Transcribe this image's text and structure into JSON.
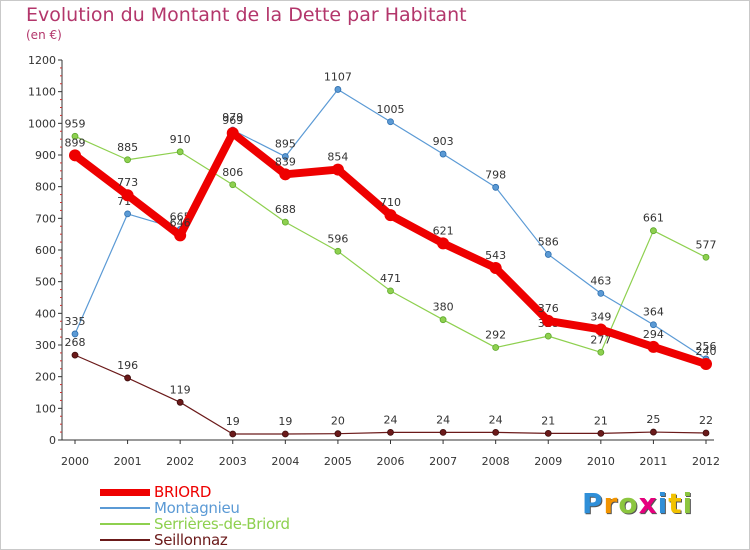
{
  "title": "Evolution du Montant de la Dette par Habitant",
  "subtitle": "(en €)",
  "logo": {
    "text": "Proxiti",
    "letters": [
      {
        "ch": "P",
        "color": "#2f8fd8"
      },
      {
        "ch": "r",
        "color": "#f29400"
      },
      {
        "ch": "o",
        "color": "#8cc63f"
      },
      {
        "ch": "x",
        "color": "#e6007e"
      },
      {
        "ch": "i",
        "color": "#2f8fd8"
      },
      {
        "ch": "t",
        "color": "#f2c200"
      },
      {
        "ch": "i",
        "color": "#8cc63f"
      }
    ]
  },
  "chart_data": {
    "type": "line",
    "x": [
      "2000",
      "2001",
      "2002",
      "2003",
      "2004",
      "2005",
      "2006",
      "2007",
      "2008",
      "2009",
      "2010",
      "2011",
      "2012"
    ],
    "ylim": [
      0,
      1200
    ],
    "yticks": [
      0,
      100,
      200,
      300,
      400,
      500,
      600,
      700,
      800,
      900,
      1000,
      1100,
      1200
    ],
    "grid": false,
    "legend_position": "bottom-left",
    "series": [
      {
        "name": "BRIORD",
        "color": "#ee0000",
        "values": [
          899,
          773,
          646,
          969,
          839,
          854,
          710,
          621,
          543,
          376,
          349,
          294,
          240
        ],
        "labels": [
          "899",
          "773",
          "646",
          "969",
          "839",
          "854",
          "710",
          "621",
          "543",
          "376",
          "349",
          "294",
          "240"
        ]
      },
      {
        "name": "Montagnieu",
        "color": "#5b9ad5",
        "values": [
          335,
          714,
          665,
          979,
          895,
          1107,
          1005,
          903,
          798,
          586,
          463,
          364,
          256
        ],
        "labels": [
          "335",
          "714",
          "665",
          "979",
          "895",
          "1107",
          "1005",
          "903",
          "798",
          "586",
          "463",
          "364",
          "256"
        ]
      },
      {
        "name": "Serrières-de-Briord",
        "color": "#8ed04f",
        "values": [
          959,
          885,
          910,
          806,
          688,
          596,
          471,
          380,
          292,
          328,
          277,
          661,
          577
        ],
        "labels": [
          "959",
          "885",
          "910",
          "806",
          "688",
          "596",
          "471",
          "380",
          "292",
          "328",
          "277",
          "661",
          "577"
        ]
      },
      {
        "name": "Seillonnaz",
        "color": "#6b1a1a",
        "values": [
          268,
          196,
          119,
          19,
          19,
          20,
          24,
          24,
          24,
          21,
          21,
          25,
          22
        ],
        "labels": [
          "268",
          "196",
          "119",
          "19",
          "19",
          "20",
          "24",
          "24",
          "24",
          "21",
          "21",
          "25",
          "22"
        ]
      }
    ]
  }
}
